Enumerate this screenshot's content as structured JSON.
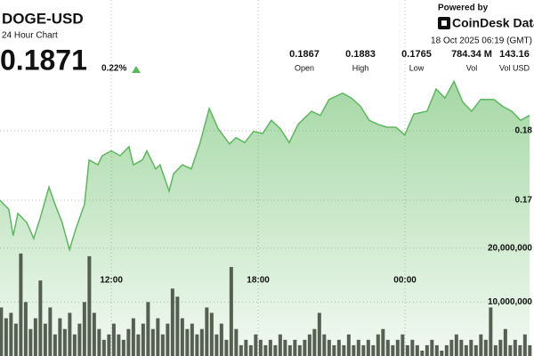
{
  "header": {
    "title": "DOGE-USD",
    "subtitle": "24 Hour Chart",
    "price": "0.1871",
    "change": "0.22%",
    "powered_by": "Powered by",
    "brand": "CoinDesk Data",
    "timestamp": "18 Oct 2025 06:19 (GMT)"
  },
  "stats": [
    {
      "value": "0.1867",
      "label": "Open"
    },
    {
      "value": "0.1883",
      "label": "High"
    },
    {
      "value": "0.1765",
      "label": "Low"
    },
    {
      "value": "784.34 M",
      "label": "Vol"
    },
    {
      "value": "143.16",
      "label": "Vol USD"
    }
  ],
  "chart_data": {
    "type": "area",
    "xlim": [
      7.45,
      29.27
    ],
    "xticks": [
      {
        "value": 12,
        "label": "12:00"
      },
      {
        "value": 18,
        "label": "18:00"
      },
      {
        "value": 24,
        "label": "00:00"
      }
    ],
    "ylim": [
      0.1476,
      0.1988
    ],
    "yticks": [
      0.17,
      0.18
    ],
    "y2lim": [
      0,
      66000000
    ],
    "y2ticks": [
      {
        "value": 10000000,
        "label": "10,000,000"
      },
      {
        "value": 20000000,
        "label": "20,000,000"
      }
    ],
    "grid": true,
    "series": [
      {
        "type": "area",
        "color": "#5cb85c",
        "x": [
          7.45,
          7.81,
          7.99,
          8.18,
          8.54,
          8.83,
          9.09,
          9.45,
          9.7,
          9.99,
          10.29,
          10.54,
          10.9,
          11.09,
          11.45,
          11.63,
          12.0,
          12.36,
          12.72,
          12.9,
          13.27,
          13.45,
          13.81,
          13.99,
          14.36,
          14.54,
          14.9,
          15.27,
          15.63,
          16.0,
          16.36,
          16.83,
          17.09,
          17.45,
          17.81,
          18.18,
          18.54,
          18.9,
          19.27,
          19.63,
          20.18,
          20.54,
          20.9,
          21.45,
          21.81,
          22.18,
          22.54,
          22.9,
          23.27,
          23.63,
          23.99,
          24.36,
          24.9,
          25.27,
          25.63,
          26.0,
          26.36,
          26.72,
          27.09,
          27.63,
          27.99,
          28.36,
          28.72,
          29.09
        ],
        "values": [
          0.17,
          0.1687,
          0.1649,
          0.1681,
          0.1668,
          0.1645,
          0.1674,
          0.1719,
          0.1694,
          0.1668,
          0.1629,
          0.1658,
          0.1694,
          0.1758,
          0.1751,
          0.1764,
          0.1771,
          0.1764,
          0.1777,
          0.1751,
          0.1758,
          0.1771,
          0.1745,
          0.1751,
          0.1713,
          0.1738,
          0.1751,
          0.1745,
          0.1783,
          0.1832,
          0.1803,
          0.1781,
          0.179,
          0.1783,
          0.1799,
          0.1796,
          0.1815,
          0.1803,
          0.1783,
          0.1809,
          0.1828,
          0.1822,
          0.1845,
          0.1854,
          0.1847,
          0.1835,
          0.1815,
          0.1809,
          0.1805,
          0.1805,
          0.1794,
          0.1824,
          0.1828,
          0.186,
          0.1847,
          0.1871,
          0.1841,
          0.1828,
          0.1845,
          0.1845,
          0.1835,
          0.1828,
          0.1815,
          0.1822
        ]
      },
      {
        "type": "bar",
        "axis": "y2",
        "color": "#3b4536",
        "x": [
          7.5,
          7.7,
          7.9,
          8.1,
          8.3,
          8.5,
          8.7,
          8.9,
          9.1,
          9.3,
          9.5,
          9.7,
          9.9,
          10.1,
          10.3,
          10.5,
          10.7,
          10.9,
          11.1,
          11.3,
          11.5,
          11.7,
          11.9,
          12.1,
          12.3,
          12.5,
          12.7,
          12.9,
          13.1,
          13.3,
          13.5,
          13.7,
          13.9,
          14.1,
          14.3,
          14.5,
          14.7,
          14.9,
          15.1,
          15.3,
          15.5,
          15.7,
          15.9,
          16.1,
          16.3,
          16.5,
          16.7,
          16.9,
          17.1,
          17.3,
          17.5,
          17.7,
          17.9,
          18.1,
          18.3,
          18.5,
          18.7,
          18.9,
          19.1,
          19.3,
          19.5,
          19.7,
          19.9,
          20.1,
          20.3,
          20.5,
          20.7,
          20.9,
          21.1,
          21.3,
          21.5,
          21.7,
          21.9,
          22.1,
          22.3,
          22.5,
          22.7,
          22.9,
          23.1,
          23.3,
          23.5,
          23.7,
          23.9,
          24.1,
          24.3,
          24.5,
          24.7,
          24.9,
          25.1,
          25.3,
          25.5,
          25.7,
          25.9,
          26.1,
          26.3,
          26.5,
          26.7,
          26.9,
          27.1,
          27.3,
          27.5,
          27.7,
          27.9,
          28.1,
          28.3,
          28.5,
          28.7,
          28.9,
          29.1
        ],
        "values": [
          9000000.0,
          7000000.0,
          8000000.0,
          6000000.0,
          19000000.0,
          10000000.0,
          5000000.0,
          7000000.0,
          14000000.0,
          6000000.0,
          9000000.0,
          4000000.0,
          7000000.0,
          5000000.0,
          8000000.0,
          4000000.0,
          6000000.0,
          10000000.0,
          18500000.0,
          8000000.0,
          5000000.0,
          3000000.0,
          4000000.0,
          6000000.0,
          4000000.0,
          3000000.0,
          5000000.0,
          7000000.0,
          4000000.0,
          6000000.0,
          10000000.0,
          5000000.0,
          7000000.0,
          4000000.0,
          6000000.0,
          12500000.0,
          11000000.0,
          7000000.0,
          5000000.0,
          6000000.0,
          4000000.0,
          5000000.0,
          9000000.0,
          8000000.0,
          4000000.0,
          6000000.0,
          3000000.0,
          16500000.0,
          5000000.0,
          2000000.0,
          3000000.0,
          2000000.0,
          4000000.0,
          3000000.0,
          2000000.0,
          3000000.0,
          2000000.0,
          4000000.0,
          3000000.0,
          2000000.0,
          3000000.0,
          2000000.0,
          3000000.0,
          4000000.0,
          5000000.0,
          8000000.0,
          4000000.0,
          3000000.0,
          2000000.0,
          3000000.0,
          2000000.0,
          4000000.0,
          2000000.0,
          3000000.0,
          2000000.0,
          3000000.0,
          2000000.0,
          4000000.0,
          5000000.0,
          3000000.0,
          2000000.0,
          3000000.0,
          4000000.0,
          2000000.0,
          3000000.0,
          2000000.0,
          1000000.0,
          2000000.0,
          3000000.0,
          2000000.0,
          1000000.0,
          2000000.0,
          3000000.0,
          4000000.0,
          3000000.0,
          2000000.0,
          3000000.0,
          2000000.0,
          4000000.0,
          3000000.0,
          9000000.0,
          2000000.0,
          3000000.0,
          5000000.0,
          2000000.0,
          3000000.0,
          2000000.0,
          4000000.0,
          2000000.0
        ]
      }
    ]
  }
}
